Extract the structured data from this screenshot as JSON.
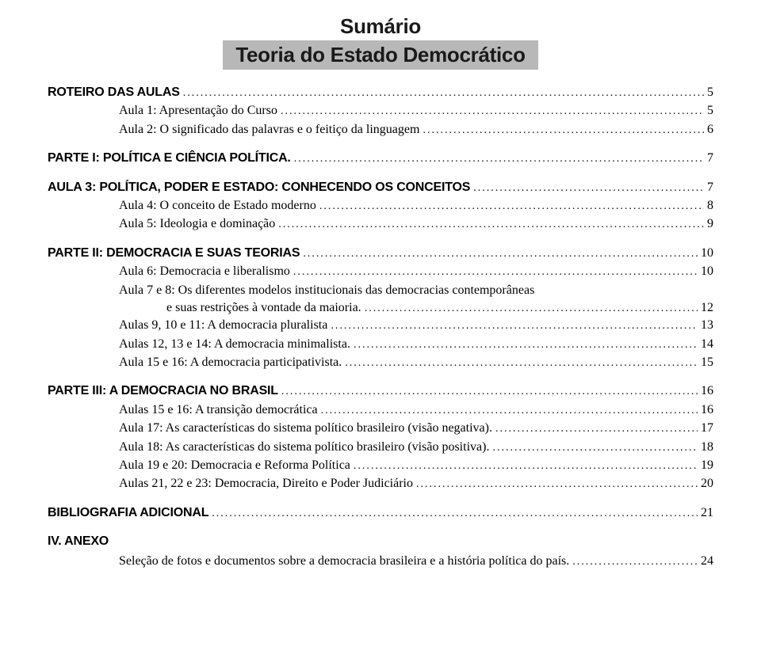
{
  "header": {
    "title": "Sumário",
    "subtitle": "Teoria do Estado Democrático"
  },
  "toc": [
    {
      "type": "section",
      "label": "ROTEIRO DAS AULAS",
      "page": "5",
      "first": true
    },
    {
      "type": "item",
      "label": "Aula 1: Apresentação do Curso",
      "page": "5"
    },
    {
      "type": "item",
      "label": "Aula 2: O significado das palavras e o feitiço da linguagem",
      "page": "6"
    },
    {
      "type": "section",
      "label": "PARTE I: POLÍTICA E CIÊNCIA POLÍTICA.",
      "page": "7"
    },
    {
      "type": "section",
      "label": "AULA 3: POLÍTICA, PODER E ESTADO: CONHECENDO OS CONCEITOS",
      "page": "7"
    },
    {
      "type": "item",
      "label": "Aula 4: O conceito de Estado moderno",
      "page": "8"
    },
    {
      "type": "item",
      "label": "Aula 5: Ideologia e dominação",
      "page": "9"
    },
    {
      "type": "section",
      "label": "PARTE II: DEMOCRACIA E SUAS TEORIAS",
      "page": "10"
    },
    {
      "type": "item",
      "label": "Aula 6: Democracia e liberalismo",
      "page": "10"
    },
    {
      "type": "multiline",
      "line1": "Aula 7 e 8: Os diferentes modelos institucionais das democracias contemporâneas",
      "line2": "e suas restrições à vontade da maioria.",
      "page": "12"
    },
    {
      "type": "item",
      "label": "Aulas 9, 10 e 11: A democracia pluralista",
      "page": "13"
    },
    {
      "type": "item",
      "label": "Aulas 12, 13 e 14: A democracia minimalista.",
      "page": "14"
    },
    {
      "type": "item",
      "label": "Aula 15 e 16: A democracia participativista.",
      "page": "15"
    },
    {
      "type": "section",
      "label": "PARTE III: A DEMOCRACIA NO BRASIL",
      "page": "16"
    },
    {
      "type": "item",
      "label": "Aulas 15 e 16: A transição democrática",
      "page": "16"
    },
    {
      "type": "item",
      "label": "Aula 17: As características do sistema político brasileiro (visão negativa).",
      "page": "17"
    },
    {
      "type": "item",
      "label": "Aula 18: As características do sistema político brasileiro (visão positiva).",
      "page": "18"
    },
    {
      "type": "item",
      "label": "Aula 19 e 20: Democracia e Reforma Política",
      "page": "19"
    },
    {
      "type": "item",
      "label": "Aulas 21, 22 e 23: Democracia, Direito e Poder Judiciário",
      "page": "20"
    },
    {
      "type": "section",
      "label": "BIBLIOGRAFIA ADICIONAL",
      "page": "21"
    },
    {
      "type": "section-nop",
      "label": "IV. ANEXO"
    },
    {
      "type": "anexo-line",
      "label": "Seleção de fotos e documentos sobre a democracia brasileira e a história política do país.",
      "page": "24"
    }
  ]
}
